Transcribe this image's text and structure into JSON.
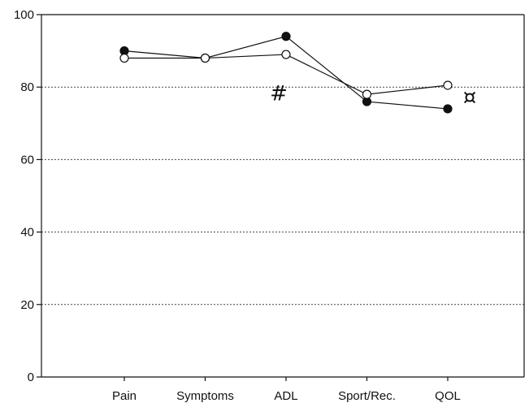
{
  "chart_data": {
    "type": "line",
    "categories": [
      "Pain",
      "Symptoms",
      "ADL",
      "Sport/Rec.",
      "QOL"
    ],
    "series": [
      {
        "marker": "filled",
        "values": [
          90,
          88,
          94,
          76,
          74
        ]
      },
      {
        "marker": "open",
        "values": [
          88,
          88,
          89,
          78,
          80.5
        ]
      }
    ],
    "ylim": [
      0,
      100
    ],
    "yticks": [
      0,
      20,
      40,
      60,
      80,
      100
    ],
    "grid": "horizontal dotted",
    "annotations": [
      {
        "text": "#",
        "category": "ADL",
        "y": 79
      },
      {
        "text": "¤",
        "category": "QOL",
        "y": 78
      }
    ],
    "colors": {
      "line": "#111111",
      "grid": "#444444",
      "open_fill": "#ffffff"
    }
  }
}
